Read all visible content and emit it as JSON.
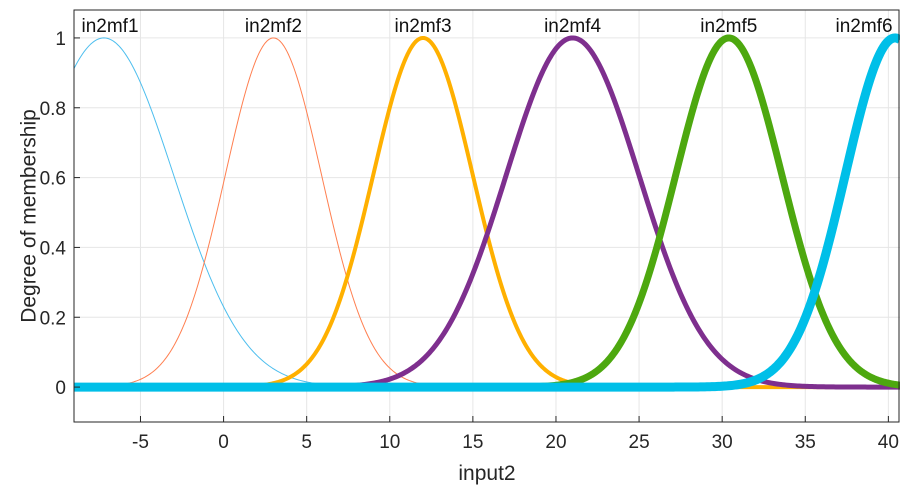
{
  "chart_data": {
    "type": "line",
    "xlabel": "input2",
    "ylabel": "Degree of membership",
    "xlim": [
      -9,
      40.7
    ],
    "ylim": [
      -0.1,
      1.08
    ],
    "xticks": [
      -5,
      0,
      5,
      10,
      15,
      20,
      25,
      30,
      35,
      40
    ],
    "yticks": [
      0,
      0.2,
      0.4,
      0.6,
      0.8,
      1
    ],
    "grid": true,
    "curve_shape": "gaussian",
    "series": [
      {
        "name": "in2mf1",
        "center": -7.2,
        "sigma": 4.2,
        "color": "#4DBEEE",
        "width": 1
      },
      {
        "name": "in2mf2",
        "center": 3.0,
        "sigma": 2.9,
        "color": "#FF7F50",
        "width": 1
      },
      {
        "name": "in2mf3",
        "center": 12.0,
        "sigma": 3.0,
        "color": "#FFB000",
        "width": 4
      },
      {
        "name": "in2mf4",
        "center": 21.0,
        "sigma": 4.0,
        "color": "#7E2F8E",
        "width": 5
      },
      {
        "name": "in2mf5",
        "center": 30.4,
        "sigma": 3.2,
        "color": "#4DA80F",
        "width": 7
      },
      {
        "name": "in2mf6",
        "center": 40.4,
        "sigma": 3.0,
        "color": "#00BFE8",
        "width": 9
      }
    ]
  }
}
